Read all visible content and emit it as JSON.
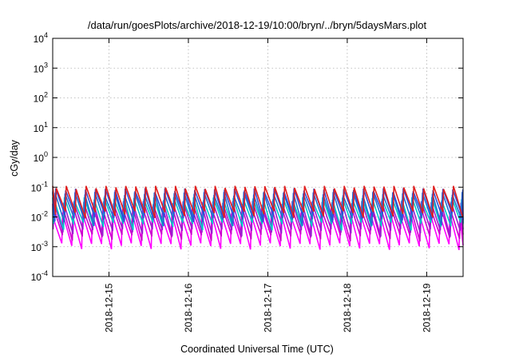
{
  "chart_data": {
    "type": "line",
    "title": "/data/run/goesPlots/archive/2018-12-19/10:00/bryn/../bryn/5daysMars.plot",
    "xlabel": "Coordinated Universal Time (UTC)",
    "ylabel": "cGy/day",
    "yscale": "log",
    "ylim": [
      0.0001,
      10000
    ],
    "xlim": [
      "2018-12-14T07:00",
      "2018-12-19T11:00"
    ],
    "x_ticks": [
      "2018-12-15",
      "2018-12-16",
      "2018-12-17",
      "2018-12-18",
      "2018-12-19"
    ],
    "y_ticks": [
      {
        "base": "10",
        "exp": "-4"
      },
      {
        "base": "10",
        "exp": "-3"
      },
      {
        "base": "10",
        "exp": "-2"
      },
      {
        "base": "10",
        "exp": "-1"
      },
      {
        "base": "10",
        "exp": "0"
      },
      {
        "base": "10",
        "exp": "1"
      },
      {
        "base": "10",
        "exp": "2"
      },
      {
        "base": "10",
        "exp": "3"
      },
      {
        "base": "10",
        "exp": "4"
      }
    ],
    "grid": true,
    "legend": "none",
    "sawtooth_period_hours": 3,
    "series": [
      {
        "color": "#ff00ff",
        "values_range": [
          0.001,
          0.012
        ]
      },
      {
        "color": "#cc00cc",
        "values_range": [
          0.002,
          0.02
        ]
      },
      {
        "color": "#9a1fd0",
        "values_range": [
          0.003,
          0.03
        ]
      },
      {
        "color": "#00c8c8",
        "values_range": [
          0.005,
          0.04
        ]
      },
      {
        "color": "#1f6fd0",
        "values_range": [
          0.007,
          0.06
        ]
      },
      {
        "color": "#2d4fd8",
        "values_range": [
          0.01,
          0.08
        ]
      },
      {
        "color": "#e02020",
        "values_range": [
          0.012,
          0.1
        ]
      }
    ]
  }
}
